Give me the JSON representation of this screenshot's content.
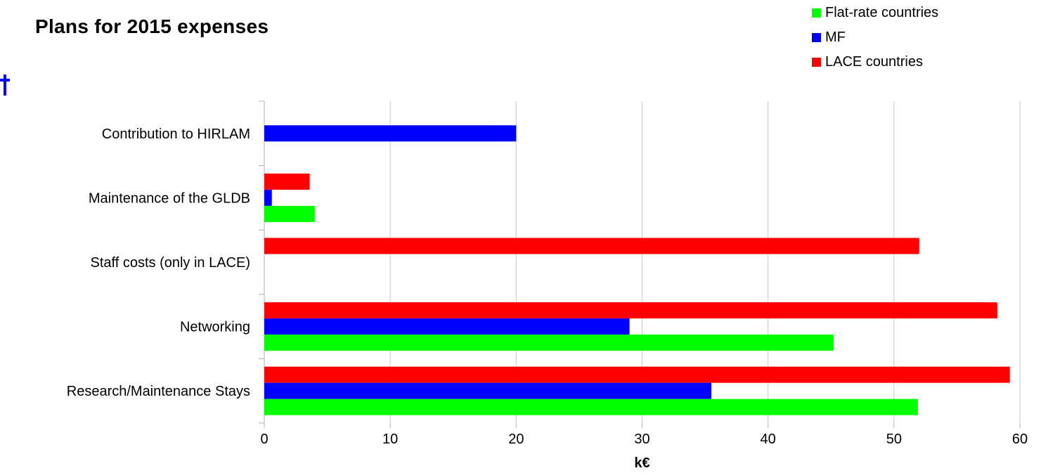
{
  "chart_data": {
    "type": "bar",
    "orientation": "horizontal",
    "title": "Plans for 2015 expenses",
    "xlabel": "k€",
    "ylabel": "",
    "xlim": [
      0,
      60
    ],
    "xticks": [
      "0",
      "10",
      "20",
      "30",
      "40",
      "50",
      "60"
    ],
    "grid": true,
    "legend_position": "top-right",
    "categories": [
      "Contribution to HIRLAM",
      "Maintenance of the GLDB",
      "Staff costs (only in LACE)",
      "Networking",
      "Research/Maintenance Stays"
    ],
    "series": [
      {
        "name": "Flat-rate countries",
        "color": "#00ff00",
        "values": [
          0,
          4,
          0,
          45.2,
          51.9
        ]
      },
      {
        "name": "MF",
        "color": "#0000ff",
        "values": [
          20,
          0.6,
          0,
          29,
          35.5
        ]
      },
      {
        "name": "LACE countries",
        "color": "#ff0000",
        "values": [
          0,
          3.6,
          52,
          58.2,
          59.2
        ]
      }
    ]
  }
}
